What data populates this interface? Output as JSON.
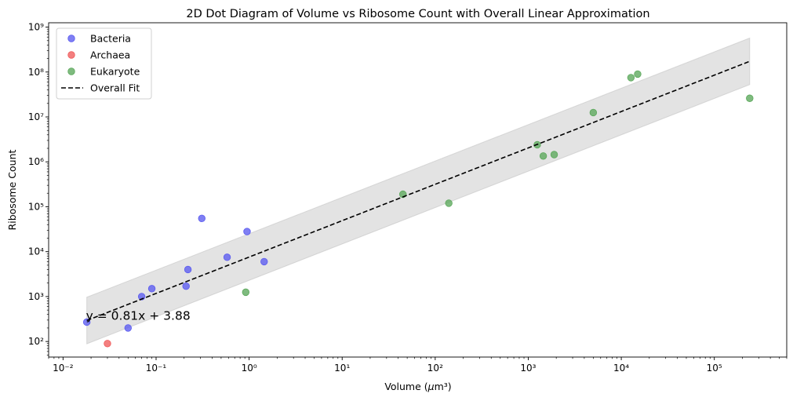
{
  "chart_data": {
    "type": "scatter",
    "title": "2D Dot Diagram of Volume vs Ribosome Count with Overall Linear Approximation",
    "xlabel": "Volume (μm³)",
    "ylabel": "Ribosome Count",
    "xscale": "log",
    "yscale": "log",
    "xlim": [
      0.007,
      600000
    ],
    "ylim": [
      45,
      1250000000
    ],
    "x_ticks": [
      0.01,
      0.1,
      1,
      10,
      100,
      1000,
      10000,
      100000
    ],
    "x_tick_labels": [
      "10⁻²",
      "10⁻¹",
      "10⁰",
      "10¹",
      "10²",
      "10³",
      "10⁴",
      "10⁵"
    ],
    "y_ticks": [
      100,
      1000,
      10000,
      100000,
      1000000,
      10000000,
      100000000,
      1000000000
    ],
    "y_tick_labels": [
      "10²",
      "10³",
      "10⁴",
      "10⁵",
      "10⁶",
      "10⁷",
      "10⁸",
      "10⁹"
    ],
    "grid": false,
    "legend_position": "top-left",
    "series": [
      {
        "name": "Bacteria",
        "color": "#5b5bf0",
        "points": [
          [
            0.018,
            270
          ],
          [
            0.05,
            200
          ],
          [
            0.07,
            1000
          ],
          [
            0.09,
            1500
          ],
          [
            0.21,
            1700
          ],
          [
            0.22,
            4000
          ],
          [
            0.31,
            55000
          ],
          [
            0.58,
            7500
          ],
          [
            0.95,
            28000
          ],
          [
            1.45,
            6000
          ]
        ]
      },
      {
        "name": "Archaea",
        "color": "#f05b5b",
        "points": [
          [
            0.03,
            90
          ]
        ]
      },
      {
        "name": "Eukaryote",
        "color": "#5ba85b",
        "points": [
          [
            0.92,
            1250
          ],
          [
            45,
            190000
          ],
          [
            140,
            120000
          ],
          [
            1250,
            2400000
          ],
          [
            1450,
            1350000
          ],
          [
            1900,
            1450000
          ],
          [
            5000,
            12500000
          ],
          [
            12700,
            75000000
          ],
          [
            15000,
            90000000
          ],
          [
            240000,
            26000000
          ]
        ]
      }
    ],
    "fit": {
      "name": "Overall Fit",
      "slope": 0.81,
      "intercept": 3.88,
      "x_range": [
        0.018,
        240000
      ],
      "band_factor": 3.3,
      "color": "#000000",
      "band_color": "#cccccc",
      "equation_label": "y = 0.81x + 3.88"
    }
  }
}
